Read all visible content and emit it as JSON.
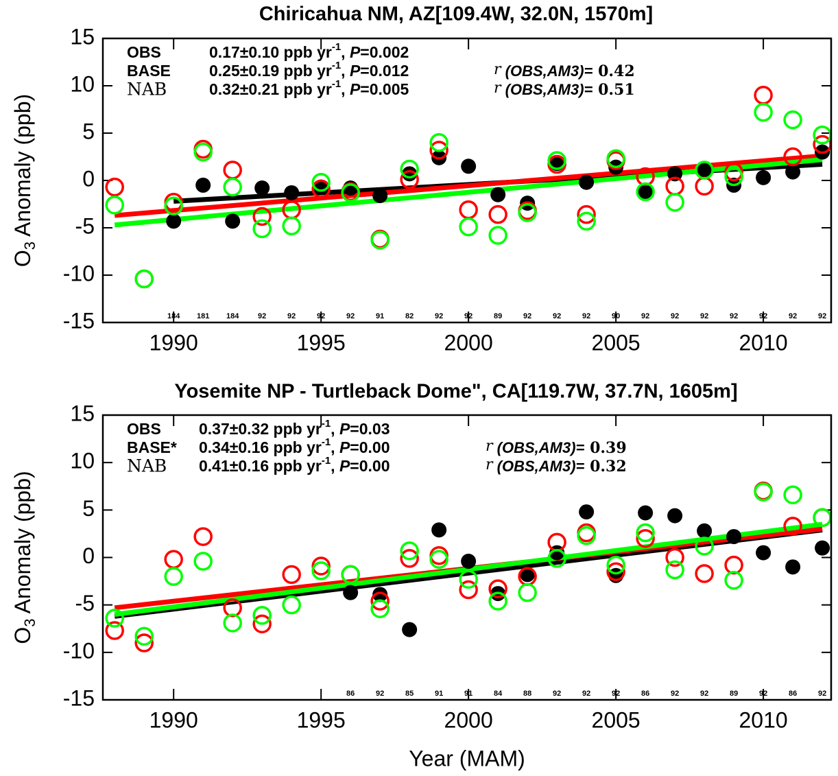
{
  "chart_data": [
    {
      "type": "scatter",
      "title": "Chiricahua NM, AZ[109.4W, 32.0N, 1570m]",
      "ylabel": [
        "O",
        "3",
        " Anomaly (ppb)"
      ],
      "xlim": [
        1987.6,
        2012.3
      ],
      "ylim": [
        -15,
        15
      ],
      "xticks": [
        1990,
        1995,
        2000,
        2005,
        2010
      ],
      "yticks": [
        -15,
        -10,
        -5,
        0,
        5,
        10,
        15
      ],
      "x": [
        1988,
        1989,
        1990,
        1991,
        1992,
        1993,
        1994,
        1995,
        1996,
        1997,
        1998,
        1999,
        2000,
        2001,
        2002,
        2003,
        2004,
        2005,
        2006,
        2007,
        2008,
        2009,
        2010,
        2011,
        2012
      ],
      "series": [
        {
          "name": "OBS",
          "color": "#000000",
          "marker": "filled",
          "values": [
            null,
            null,
            -4.3,
            -0.5,
            -4.3,
            -0.8,
            -1.3,
            -0.7,
            -0.8,
            -1.6,
            0.7,
            2.4,
            1.5,
            -1.5,
            -2.4,
            1.8,
            -0.2,
            1.4,
            -1.2,
            0.7,
            1.1,
            -0.5,
            0.3,
            0.9,
            3.0
          ],
          "trend": {
            "x": [
              1990,
              2012
            ],
            "values": [
              -2.2,
              1.7
            ]
          },
          "trend_text": [
            "0.17±0.10 ppb yr",
            "-1",
            ", ",
            "P",
            "=0.002"
          ]
        },
        {
          "name": "BASE",
          "color": "#ff0000",
          "marker": "open",
          "values": [
            -0.7,
            -10.4,
            -2.3,
            3.3,
            1.1,
            -3.8,
            -3.1,
            -0.9,
            -1.2,
            -6.2,
            0.1,
            3.2,
            -3.1,
            -3.6,
            -3.2,
            1.7,
            -3.6,
            2.1,
            0.4,
            -0.6,
            -0.6,
            0.9,
            9.0,
            2.5,
            3.8
          ],
          "trend": {
            "x": [
              1988,
              2012
            ],
            "values": [
              -3.7,
              2.6
            ]
          },
          "trend_text": [
            "0.25±0.19 ppb yr",
            "-1",
            ", ",
            "P",
            "=0.012"
          ],
          "corr_text": [
            "r",
            " (OBS",
            ",AM3)=",
            " 0.42"
          ]
        },
        {
          "name": "NAB",
          "color": "#00ff00",
          "marker": "open",
          "values": [
            -2.6,
            -10.4,
            -2.7,
            3.0,
            -0.7,
            -5.1,
            -4.8,
            -0.2,
            -1.3,
            -6.3,
            1.2,
            4.0,
            -4.9,
            -5.8,
            -3.4,
            2.1,
            -4.3,
            2.3,
            -1.2,
            -2.3,
            1.1,
            0.4,
            7.2,
            6.4,
            4.8
          ],
          "trend": {
            "x": [
              1988,
              2012
            ],
            "values": [
              -4.7,
              2.2
            ]
          },
          "trend_text": [
            "0.32±0.21 ppb yr",
            "-1",
            ", ",
            "P",
            "=0.005"
          ],
          "corr_text": [
            "r",
            " (OBS",
            ",AM3)=",
            " 0.51"
          ]
        }
      ],
      "counts": {
        "x": [
          1990,
          1991,
          1992,
          1993,
          1994,
          1995,
          1996,
          1997,
          1998,
          1999,
          2000,
          2001,
          2002,
          2003,
          2004,
          2005,
          2006,
          2007,
          2008,
          2009,
          2010,
          2011,
          2012
        ],
        "values": [
          184,
          181,
          184,
          92,
          92,
          92,
          92,
          91,
          82,
          92,
          92,
          89,
          92,
          92,
          92,
          90,
          92,
          92,
          92,
          92,
          92,
          92,
          92
        ]
      }
    },
    {
      "type": "scatter",
      "title": "Yosemite NP - Turtleback Dome\", CA[119.7W, 37.7N, 1605m]",
      "ylabel": [
        "O",
        "3",
        " Anomaly (ppb)"
      ],
      "xlabel": "Year (MAM)",
      "xlim": [
        1987.6,
        2012.3
      ],
      "ylim": [
        -15,
        15
      ],
      "xticks": [
        1990,
        1995,
        2000,
        2005,
        2010
      ],
      "yticks": [
        -15,
        -10,
        -5,
        0,
        5,
        10,
        15
      ],
      "x": [
        1988,
        1989,
        1990,
        1991,
        1992,
        1993,
        1994,
        1995,
        1996,
        1997,
        1998,
        1999,
        2000,
        2001,
        2002,
        2003,
        2004,
        2005,
        2006,
        2007,
        2008,
        2009,
        2010,
        2011,
        2012
      ],
      "series": [
        {
          "name": "OBS",
          "color": "#000000",
          "marker": "filled",
          "values": [
            null,
            null,
            null,
            null,
            null,
            null,
            null,
            null,
            -3.7,
            -3.9,
            -7.6,
            2.9,
            -0.4,
            -3.8,
            -1.8,
            0.5,
            4.8,
            -1.9,
            4.7,
            4.4,
            2.8,
            2.2,
            0.5,
            -1.0,
            1.0
          ],
          "trend": {
            "x": [
              1988,
              2012
            ],
            "values": [
              -6.2,
              2.9
            ]
          },
          "trend_text": [
            "0.37±0.32 ppb yr",
            "-1",
            ", ",
            "P",
            "=0.03"
          ]
        },
        {
          "name": "BASE*",
          "color": "#ff0000",
          "marker": "open",
          "values": [
            -7.7,
            -9.0,
            -0.2,
            2.2,
            -5.3,
            -7.0,
            -1.8,
            -0.9,
            -1.8,
            -4.6,
            -0.1,
            0.2,
            -3.4,
            -3.3,
            -2.0,
            1.6,
            2.6,
            -1.5,
            2.0,
            0.0,
            -1.7,
            -0.8,
            7.0,
            3.3,
            4.2
          ],
          "trend": {
            "x": [
              1988,
              2012
            ],
            "values": [
              -5.3,
              3.0
            ]
          },
          "trend_text": [
            "0.34±0.16 ppb yr",
            "-1",
            ", ",
            "P",
            "=0.00"
          ],
          "corr_text": [
            "r",
            " (OBS",
            ",AM3)=",
            " 0.39"
          ]
        },
        {
          "name": "NAB",
          "color": "#00ff00",
          "marker": "open",
          "values": [
            -6.4,
            -8.3,
            -2.0,
            -0.4,
            -6.9,
            -6.1,
            -5.0,
            -1.4,
            -1.8,
            -5.4,
            0.7,
            -0.2,
            -2.3,
            -4.6,
            -3.7,
            -0.1,
            2.3,
            -0.8,
            2.6,
            -1.3,
            1.2,
            -2.4,
            6.9,
            6.6,
            4.2
          ],
          "trend": {
            "x": [
              1988,
              2012
            ],
            "values": [
              -6.0,
              3.5
            ]
          },
          "trend_text": [
            "0.41±0.16 ppb yr",
            "-1",
            ", ",
            "P",
            "=0.00"
          ],
          "corr_text": [
            "r",
            " (OBS",
            ",AM3)=",
            " 0.32"
          ]
        }
      ],
      "counts": {
        "x": [
          1996,
          1997,
          1998,
          1999,
          2000,
          2001,
          2002,
          2003,
          2004,
          2005,
          2006,
          2007,
          2008,
          2009,
          2010,
          2011,
          2012
        ],
        "values": [
          86,
          92,
          85,
          91,
          91,
          84,
          88,
          92,
          92,
          92,
          86,
          92,
          92,
          89,
          92,
          86,
          92
        ]
      }
    }
  ]
}
